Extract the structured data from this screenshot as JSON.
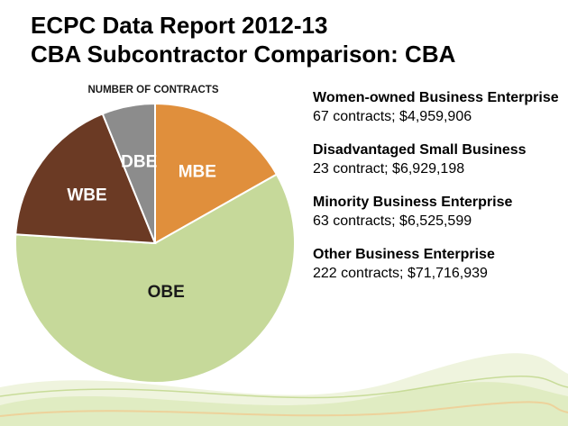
{
  "title_line1": "ECPC Data Report 2012-13",
  "title_line2": "CBA Subcontractor Comparison: CBA",
  "chart_data": {
    "type": "pie",
    "title": "NUMBER OF CONTRACTS",
    "categories": [
      "MBE",
      "OBE",
      "WBE",
      "DBE"
    ],
    "values": [
      63,
      222,
      67,
      23
    ],
    "colors": [
      "#E08F3C",
      "#C6D99A",
      "#6B3A24",
      "#8C8C8C"
    ],
    "label_colors": [
      "#ffffff",
      "#1a1a1a",
      "#ffffff",
      "#ffffff"
    ]
  },
  "legend": [
    {
      "name": "Women-owned Business Enterprise",
      "value": "67 contracts; $4,959,906"
    },
    {
      "name": "Disadvantaged Small Business",
      "value": "23 contract; $6,929,198"
    },
    {
      "name": "Minority Business Enterprise",
      "value": "63 contracts; $6,525,599"
    },
    {
      "name": "Other Business Enterprise",
      "value": "222 contracts; $71,716,939"
    }
  ]
}
